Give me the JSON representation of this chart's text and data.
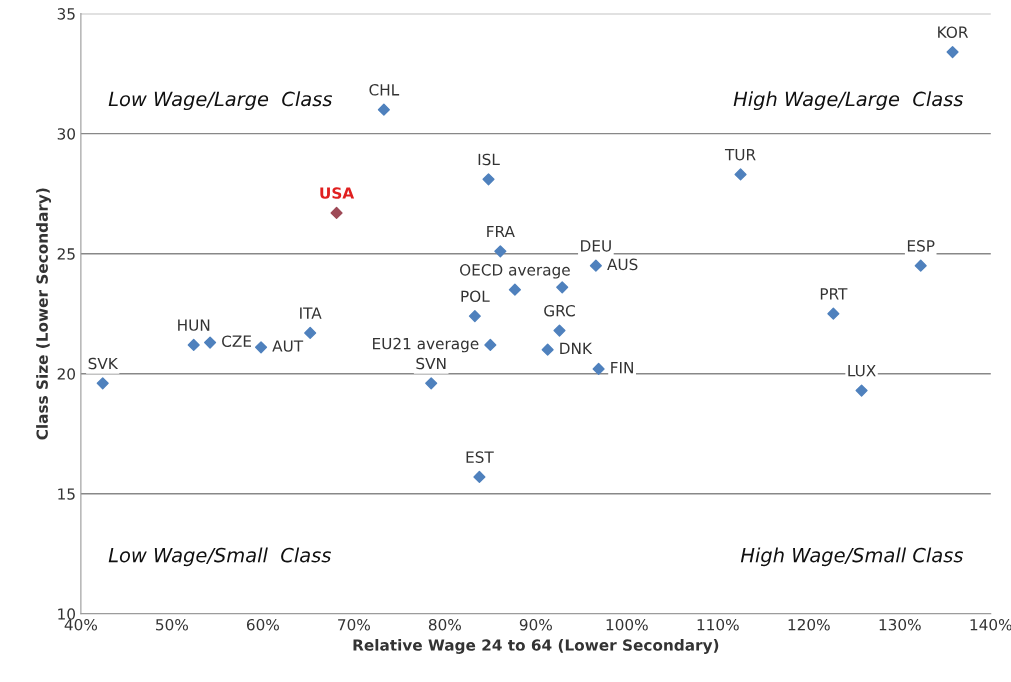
{
  "chart_data": {
    "type": "scatter",
    "xlabel": "Relative Wage 24 to 64 (Lower Secondary)",
    "ylabel": "Class Size (Lower Secondary)",
    "series": [
      {
        "color": "#4f81bd",
        "x": [
          42.4,
          52.4,
          54.2,
          59.8,
          65.2,
          73.3,
          78.5,
          83.8,
          83.3,
          85.0,
          84.8,
          86.1,
          87.7,
          92.9,
          92.6,
          91.3,
          96.6,
          96.9,
          112.5,
          135.8,
          132.3,
          122.7,
          125.8
        ],
        "values": [
          19.6,
          21.2,
          21.3,
          21.1,
          21.7,
          31.0,
          19.6,
          15.7,
          22.4,
          21.2,
          28.1,
          25.1,
          23.5,
          23.6,
          21.8,
          21.0,
          24.5,
          20.2,
          28.3,
          33.4,
          24.5,
          22.5,
          19.3
        ]
      },
      {
        "color": "#9e4a57",
        "x": [
          68.1
        ],
        "values": [
          26.7
        ]
      }
    ],
    "annotations": [
      "Low Wage/Large  Class",
      "High Wage/Large  Class",
      "Low Wage/Small  Class",
      "High Wage/Small Class",
      {
        "text": "SVK",
        "x": 42.4,
        "y": 19.6
      },
      {
        "text": "HUN",
        "x": 52.4,
        "y": 21.2
      },
      {
        "text": "CZE",
        "x": 54.2,
        "y": 21.3
      },
      {
        "text": "AUT",
        "x": 59.8,
        "y": 21.1
      },
      {
        "text": "ITA",
        "x": 65.2,
        "y": 21.7
      },
      {
        "text": "USA",
        "x": 68.1,
        "y": 26.7
      },
      {
        "text": "CHL",
        "x": 73.3,
        "y": 31.0
      },
      {
        "text": "SVN",
        "x": 78.5,
        "y": 19.6
      },
      {
        "text": "EST",
        "x": 83.8,
        "y": 15.7
      },
      {
        "text": "POL",
        "x": 83.3,
        "y": 22.4
      },
      {
        "text": "EU21 average",
        "x": 85.0,
        "y": 21.2
      },
      {
        "text": "ISL",
        "x": 84.8,
        "y": 28.1
      },
      {
        "text": "FRA",
        "x": 86.1,
        "y": 25.1
      },
      {
        "text": "OECD average",
        "x": 87.7,
        "y": 23.5
      },
      {
        "text": "GRC",
        "x": 92.6,
        "y": 21.8
      },
      {
        "text": "DNK",
        "x": 91.3,
        "y": 21.0
      },
      {
        "text": "DEU",
        "x": 96.6,
        "y": 24.5
      },
      {
        "text": "AUS",
        "x": 96.6,
        "y": 24.5
      },
      {
        "text": "FIN",
        "x": 96.9,
        "y": 20.2
      },
      {
        "text": "TUR",
        "x": 112.5,
        "y": 28.3
      },
      {
        "text": "KOR",
        "x": 135.8,
        "y": 33.4
      },
      {
        "text": "ESP",
        "x": 132.3,
        "y": 24.5
      },
      {
        "text": "PRT",
        "x": 122.7,
        "y": 22.5
      },
      {
        "text": "LUX",
        "x": 125.8,
        "y": 19.3
      }
    ],
    "xlim": [
      40,
      140
    ],
    "xticks": [
      {
        "value": 40,
        "label": "40%"
      },
      {
        "value": 50,
        "label": "50%"
      },
      {
        "value": 60,
        "label": "60%"
      },
      {
        "value": 70,
        "label": "70%"
      },
      {
        "value": 80,
        "label": "80%"
      },
      {
        "value": 90,
        "label": "90%"
      },
      {
        "value": 100,
        "label": "100%"
      },
      {
        "value": 110,
        "label": "110%"
      },
      {
        "value": 120,
        "label": "120%"
      },
      {
        "value": 130,
        "label": "130%"
      },
      {
        "value": 140,
        "label": "140%"
      }
    ],
    "ylim": [
      10,
      35
    ],
    "yticks": [
      10,
      15,
      20,
      25,
      30,
      35
    ],
    "grid": "y",
    "marker": "diamond"
  }
}
